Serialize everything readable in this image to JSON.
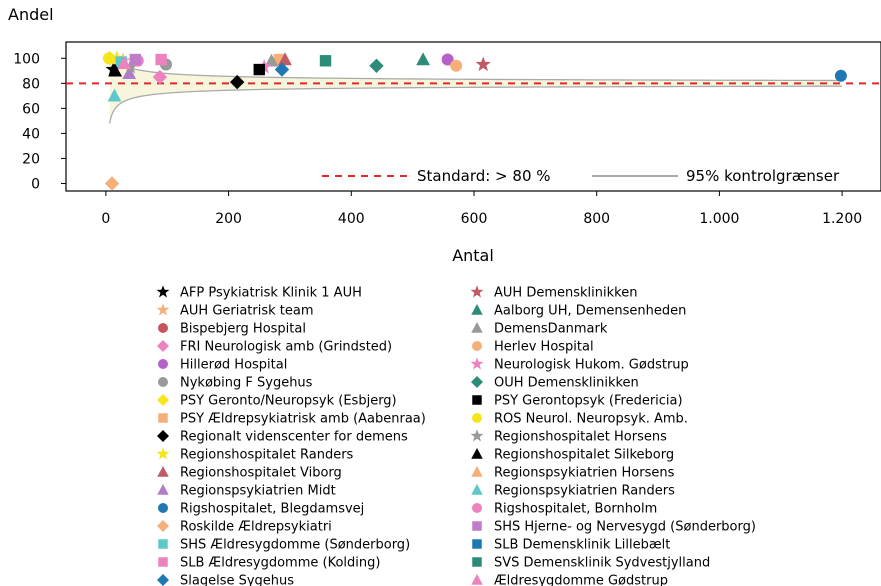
{
  "chart_data": {
    "type": "scatter",
    "ylabel": "Andel",
    "xlabel": "Antal",
    "xlim": [
      -65,
      1265
    ],
    "ylim": [
      -6,
      113
    ],
    "xticks": [
      0,
      200,
      400,
      600,
      800,
      1000,
      1200
    ],
    "xtick_labels": [
      "0",
      "200",
      "400",
      "600",
      "800",
      "1.000",
      "1.200"
    ],
    "yticks": [
      0,
      20,
      40,
      60,
      80,
      100
    ],
    "ytick_labels": [
      "0",
      "20",
      "40",
      "60",
      "80",
      "100"
    ],
    "standard": {
      "value": 80,
      "label": "Standard: > 80 %",
      "color": "#e0282d"
    },
    "control_limits": {
      "label": "95% kontrolgrænser",
      "color": "#aaaaaa",
      "fill": "#f7f6dc"
    },
    "series": [
      {
        "name": "AFP Psykiatrisk Klinik 1 AUH",
        "marker": "star",
        "color": "#000000",
        "points": [
          [
            12,
            91
          ]
        ]
      },
      {
        "name": "AUH Geriatrisk team",
        "marker": "star",
        "color": "#f5b07a",
        "points": [
          [
            28,
            98
          ]
        ]
      },
      {
        "name": "Bispebjerg Hospital",
        "marker": "circle",
        "color": "#c8555a",
        "points": []
      },
      {
        "name": "FRI Neurologisk amb (Grindsted)",
        "marker": "diamond",
        "color": "#ee82c0",
        "points": [
          [
            88,
            85
          ]
        ]
      },
      {
        "name": "Hillerød Hospital",
        "marker": "circle",
        "color": "#b660c8",
        "points": [
          [
            557,
            99
          ]
        ]
      },
      {
        "name": "Nykøbing F Sygehus",
        "marker": "circle",
        "color": "#999999",
        "points": [
          [
            98,
            95
          ]
        ]
      },
      {
        "name": "PSY Geronto/Neuropsyk  (Esbjerg)",
        "marker": "diamond",
        "color": "#f5e51a",
        "points": [
          [
            6,
            100
          ]
        ]
      },
      {
        "name": "PSY Ældrepsykiatrisk amb (Aabenraa)",
        "marker": "square",
        "color": "#f5b07a",
        "points": [
          [
            283,
            99
          ]
        ]
      },
      {
        "name": "Regionalt videnscenter for demens",
        "marker": "diamond",
        "color": "#000000",
        "points": [
          [
            214,
            81
          ]
        ]
      },
      {
        "name": "Regionshospitalet Randers",
        "marker": "star",
        "color": "#f5e51a",
        "points": [
          [
            18,
            100
          ]
        ]
      },
      {
        "name": "Regionshospitalet Viborg",
        "marker": "triangle",
        "color": "#c05a63",
        "points": [
          [
            292,
            99
          ]
        ]
      },
      {
        "name": "Regionspsykiatrien Midt",
        "marker": "triangle",
        "color": "#b07cc8",
        "points": [
          [
            38,
            88
          ]
        ]
      },
      {
        "name": "Rigshospitalet, Blegdamsvej",
        "marker": "circle",
        "color": "#1f77b4",
        "points": [
          [
            1198,
            86
          ]
        ]
      },
      {
        "name": "Roskilde Ældrepsykiatri",
        "marker": "diamond",
        "color": "#f5b07a",
        "points": [
          [
            10,
            0
          ]
        ]
      },
      {
        "name": "SHS Ældresygdomme (Sønderborg)",
        "marker": "square",
        "color": "#5dc8c8",
        "points": [
          [
            25,
            97
          ]
        ]
      },
      {
        "name": "SLB Ældresygdomme (Kolding)",
        "marker": "square",
        "color": "#ee82c0",
        "points": [
          [
            90,
            99
          ]
        ]
      },
      {
        "name": "Slagelse Sygehus",
        "marker": "diamond",
        "color": "#1f77b4",
        "points": [
          [
            287,
            91
          ]
        ]
      },
      {
        "name": "AUH Demensklinikken",
        "marker": "star",
        "color": "#c05a63",
        "points": [
          [
            615,
            95
          ]
        ]
      },
      {
        "name": "Aalborg UH, Demensenheden",
        "marker": "triangle",
        "color": "#2e8b78",
        "points": [
          [
            517,
            99
          ]
        ]
      },
      {
        "name": "DemensDanmark",
        "marker": "triangle",
        "color": "#999999",
        "points": [
          [
            270,
            98
          ]
        ]
      },
      {
        "name": "Herlev Hospital",
        "marker": "circle",
        "color": "#f5b07a",
        "points": [
          [
            571,
            94
          ]
        ]
      },
      {
        "name": "Neurologisk Hukom. Gødstrup",
        "marker": "star",
        "color": "#ee82c0",
        "points": [
          [
            258,
            93
          ]
        ]
      },
      {
        "name": "OUH Demensklinikken",
        "marker": "diamond",
        "color": "#2e8b78",
        "points": [
          [
            441,
            94
          ]
        ]
      },
      {
        "name": "PSY Gerontopsyk (Fredericia)",
        "marker": "square",
        "color": "#000000",
        "points": [
          [
            250,
            91
          ]
        ]
      },
      {
        "name": "ROS Neurol. Neuropsyk. Amb.",
        "marker": "circle",
        "color": "#f5e51a",
        "points": [
          [
            5,
            100
          ]
        ]
      },
      {
        "name": "Regionshospitalet Horsens",
        "marker": "star",
        "color": "#999999",
        "points": [
          [
            40,
            93
          ]
        ]
      },
      {
        "name": "Regionshospitalet Silkeborg",
        "marker": "triangle",
        "color": "#000000",
        "points": [
          [
            15,
            90
          ]
        ]
      },
      {
        "name": "Regionspsykiatrien Horsens",
        "marker": "triangle",
        "color": "#f5b07a",
        "points": []
      },
      {
        "name": "Regionspsykiatrien Randers",
        "marker": "triangle",
        "color": "#5dc8c8",
        "points": [
          [
            14,
            70
          ]
        ]
      },
      {
        "name": "Rigshospitalet, Bornholm",
        "marker": "circle",
        "color": "#ee82c0",
        "points": [
          [
            52,
            98
          ]
        ]
      },
      {
        "name": "SHS Hjerne- og Nervesygd (Sønderborg)",
        "marker": "square",
        "color": "#c07cc8",
        "points": [
          [
            48,
            99
          ]
        ]
      },
      {
        "name": "SLB Demensklinik Lillebælt",
        "marker": "square",
        "color": "#1f77b4",
        "points": []
      },
      {
        "name": "SVS Demensklinik Sydvestjylland",
        "marker": "square",
        "color": "#2e8b78",
        "points": [
          [
            358,
            98
          ]
        ]
      },
      {
        "name": "Ældresygdomme Gødstrup",
        "marker": "triangle",
        "color": "#ee82c0",
        "points": [
          [
            30,
            96
          ]
        ]
      }
    ]
  }
}
